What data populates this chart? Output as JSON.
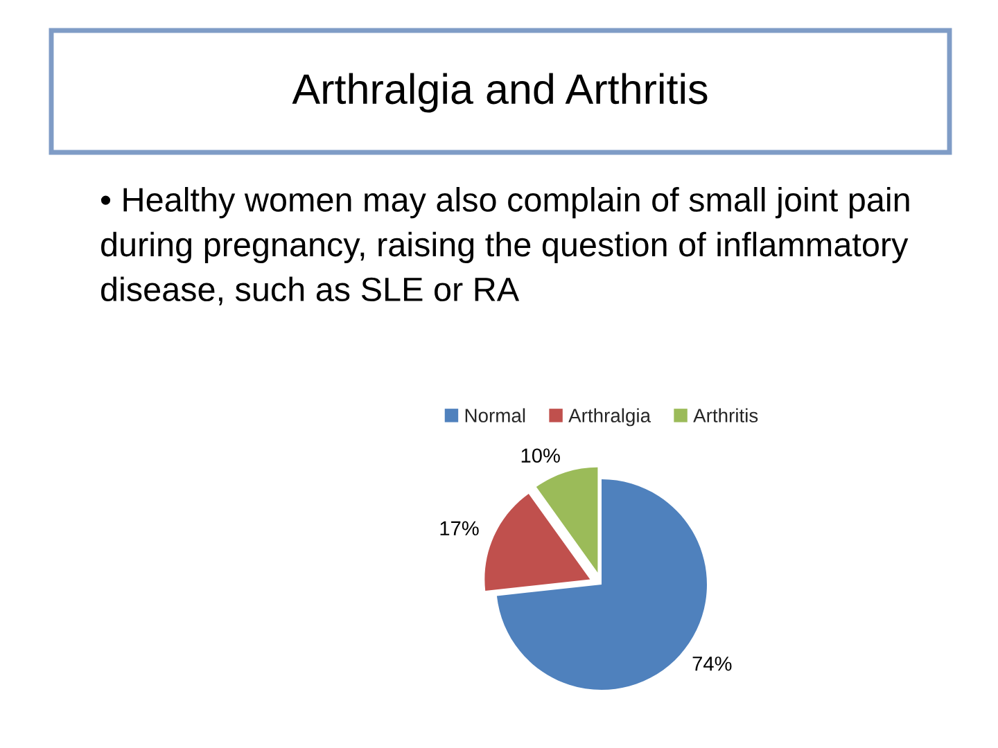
{
  "chart_data": {
    "type": "pie",
    "title": "Arthralgia and Arthritis",
    "subtitle": "• Healthy women may also complain of small joint pain during pregnancy, raising the question of inflammatory disease, such as SLE or RA",
    "categories": [
      "Normal",
      "Arthralgia",
      "Arthritis"
    ],
    "values": [
      74,
      17,
      10
    ],
    "colors": [
      "#4f81bd",
      "#c0504d",
      "#9bbb59"
    ],
    "value_labels": [
      "74%",
      "17%",
      "10%"
    ],
    "legend": "top"
  }
}
